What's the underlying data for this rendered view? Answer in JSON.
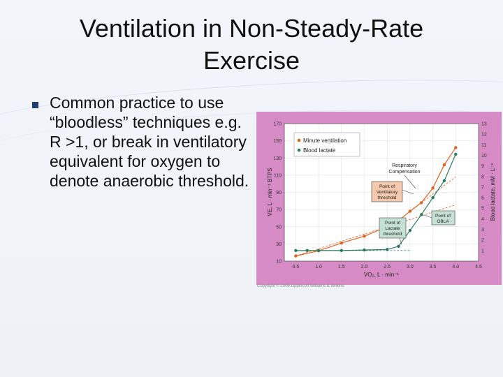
{
  "slide": {
    "title_line1": "Ventilation in Non-Steady-Rate",
    "title_line2": "Exercise",
    "bullet": "Common practice to use “bloodless” techniques e.g. R >1, or break in ventilatory equivalent for oxygen to denote anaerobic threshold."
  },
  "figure": {
    "background_color": "#d68bc6",
    "plot_color": "#ffffff",
    "copyright": "Copyright © 2006 Lippincott Williams & Wilkins",
    "annotations": {
      "respiratory_line1": "Respiratory",
      "respiratory_line2": "Compensation",
      "vent_line1": "Point of",
      "vent_line2": "Ventilatory",
      "vent_line3": "threshold",
      "obla_line1": "Point of",
      "obla_line2": "OBLA",
      "lact_line1": "Point of",
      "lact_line2": "Lactate",
      "lact_line3": "threshold"
    }
  },
  "chart_data": {
    "type": "line",
    "xlabel": "V̇O₂, L · min⁻¹",
    "ylabel": "V̇E, L · min⁻¹ BTPS",
    "ylabel_right": "Blood lactate, mM · L⁻¹",
    "xlim": [
      0.25,
      4.5
    ],
    "ylim": [
      10,
      170
    ],
    "ylim_right": [
      0,
      13
    ],
    "x_ticks": [
      0.5,
      1.0,
      1.5,
      2.0,
      2.5,
      3.0,
      3.5,
      4.0,
      4.5
    ],
    "y_ticks": [
      10,
      30,
      50,
      70,
      90,
      110,
      130,
      150,
      170
    ],
    "y_ticks_right": [
      1,
      2,
      3,
      4,
      5,
      6,
      7,
      8,
      9,
      10,
      11,
      12,
      13
    ],
    "legend_position": "top-left",
    "series": [
      {
        "name": "Minute ventilation",
        "color": "#e0601f",
        "x": [
          0.5,
          1.0,
          1.5,
          2.0,
          2.5,
          2.75,
          3.0,
          3.25,
          3.5,
          3.75,
          4.0
        ],
        "y": [
          16,
          22,
          31,
          39,
          50,
          57,
          68,
          78,
          95,
          122,
          142
        ]
      },
      {
        "name": "Blood lactate",
        "color": "#2a7a5c",
        "axis": "right",
        "x": [
          0.5,
          0.75,
          1.0,
          1.5,
          2.0,
          2.5,
          2.75,
          3.0,
          3.25,
          3.5,
          3.75,
          4.0
        ],
        "y": [
          1.0,
          1.0,
          1.0,
          1.0,
          1.05,
          1.1,
          1.4,
          2.9,
          4.4,
          6.0,
          7.6,
          10.1
        ]
      }
    ]
  }
}
